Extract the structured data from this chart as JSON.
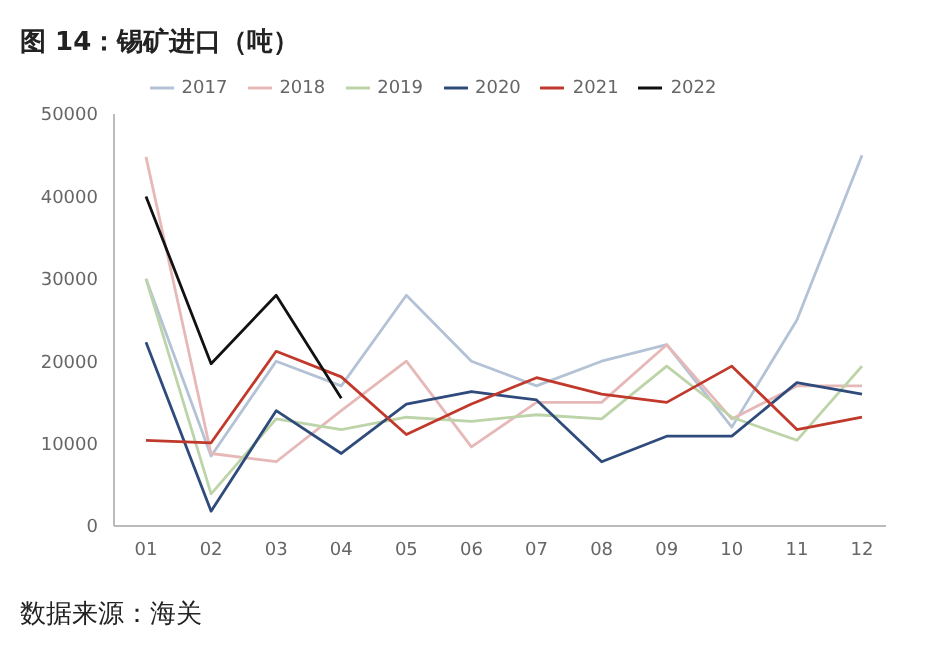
{
  "chart_data": {
    "type": "line",
    "title": "图 14：锡矿进口（吨）",
    "annotations": [
      "数据来源：海关"
    ],
    "categories": [
      "01",
      "02",
      "03",
      "04",
      "05",
      "06",
      "07",
      "08",
      "09",
      "10",
      "11",
      "12"
    ],
    "series": [
      {
        "name": "2017",
        "color": "#b4c2d6",
        "values": [
          30000,
          8500,
          20000,
          17000,
          28000,
          20000,
          17000,
          20000,
          22000,
          12000,
          25000,
          45000
        ]
      },
      {
        "name": "2018",
        "color": "#e6b8b8",
        "values": [
          44800,
          8800,
          7800,
          14000,
          20000,
          9600,
          15000,
          15000,
          22000,
          13000,
          17000,
          17000
        ]
      },
      {
        "name": "2019",
        "color": "#bcd4a8",
        "values": [
          30000,
          3900,
          13000,
          11700,
          13200,
          12700,
          13500,
          13000,
          19400,
          13200,
          10400,
          19400
        ]
      },
      {
        "name": "2020",
        "color": "#2f4b7c",
        "values": [
          22300,
          1800,
          14000,
          8800,
          14800,
          16300,
          15300,
          7800,
          10900,
          10900,
          17400,
          16000
        ]
      },
      {
        "name": "2021",
        "color": "#c0392b",
        "values": [
          10400,
          10100,
          21200,
          18100,
          11100,
          14800,
          18000,
          16000,
          15000,
          19400,
          11700,
          13200
        ]
      },
      {
        "name": "2022",
        "color": "#111111",
        "values": [
          40000,
          19700,
          28000,
          15500,
          null,
          null,
          null,
          null,
          null,
          null,
          null,
          null
        ]
      }
    ],
    "ylim": [
      0,
      50000
    ],
    "yticks": [
      0,
      10000,
      20000,
      30000,
      40000,
      50000
    ],
    "grid": false,
    "legend": "top",
    "marker": "none"
  }
}
